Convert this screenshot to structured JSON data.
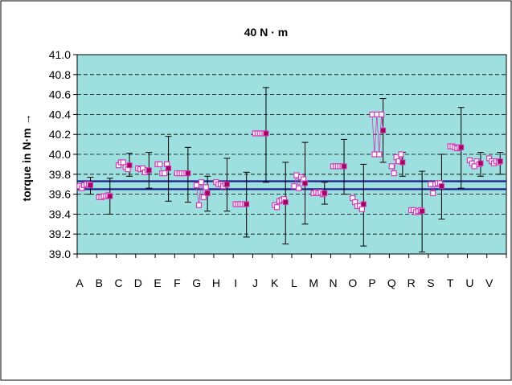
{
  "chart_data": {
    "type": "scatter",
    "title": "40 N · m",
    "xlabel": "",
    "ylabel": "torque in N·m →",
    "categories": [
      "A",
      "B",
      "C",
      "D",
      "E",
      "F",
      "G",
      "H",
      "I",
      "J",
      "K",
      "L",
      "M",
      "N",
      "O",
      "P",
      "Q",
      "R",
      "S",
      "T",
      "U",
      "V"
    ],
    "ylim": [
      39.0,
      41.0
    ],
    "yticks": [
      "39.0",
      "39.2",
      "39.4",
      "39.6",
      "39.8",
      "40.0",
      "40.2",
      "40.4",
      "40.6",
      "40.8",
      "41.0"
    ],
    "grid": true,
    "legend": "none",
    "reference_lines": [
      39.73,
      39.65
    ],
    "measurements": [
      [
        39.68,
        39.66,
        39.69,
        39.7,
        39.7
      ],
      [
        39.57,
        39.57,
        39.58,
        39.58,
        39.59
      ],
      [
        39.89,
        39.92,
        39.92,
        39.87,
        39.85
      ],
      [
        39.86,
        39.85,
        39.86,
        39.82,
        39.84
      ],
      [
        39.9,
        39.9,
        39.81,
        39.81,
        39.9
      ],
      [
        39.81,
        39.81,
        39.81,
        39.81,
        39.81
      ],
      [
        39.69,
        39.49,
        39.72,
        39.57,
        39.67
      ],
      [
        39.72,
        39.7,
        39.7,
        39.68,
        39.7
      ],
      [
        39.5,
        39.5,
        39.5,
        39.5,
        39.5
      ],
      [
        40.21,
        40.21,
        40.21,
        40.21,
        40.21
      ],
      [
        39.49,
        39.47,
        39.53,
        39.54,
        39.55
      ],
      [
        39.68,
        39.79,
        39.66,
        39.77,
        39.75
      ],
      [
        39.61,
        39.62,
        39.61,
        39.62,
        39.6
      ],
      [
        39.88,
        39.88,
        39.88,
        39.88,
        39.88
      ],
      [
        39.56,
        39.52,
        39.48,
        39.48,
        39.45
      ],
      [
        40.4,
        40.0,
        40.4,
        40.0,
        40.4
      ],
      [
        39.88,
        39.81,
        39.97,
        39.93,
        40.0
      ],
      [
        39.44,
        39.44,
        39.42,
        39.43,
        39.44
      ],
      [
        39.7,
        39.61,
        39.7,
        39.71,
        39.71
      ],
      [
        40.08,
        40.08,
        40.07,
        40.06,
        40.07
      ],
      [
        39.94,
        39.91,
        39.88,
        39.93,
        39.9
      ],
      [
        39.96,
        39.93,
        39.91,
        39.93,
        39.92
      ]
    ],
    "means": [
      39.69,
      39.58,
      39.89,
      39.84,
      39.86,
      39.81,
      39.61,
      39.7,
      39.5,
      40.21,
      39.52,
      39.71,
      39.61,
      39.88,
      39.5,
      40.24,
      39.92,
      39.43,
      39.68,
      40.07,
      39.91,
      39.93
    ],
    "error_low": [
      39.6,
      39.4,
      39.78,
      39.66,
      39.53,
      39.52,
      39.43,
      39.43,
      39.17,
      39.72,
      39.1,
      39.3,
      39.5,
      39.6,
      39.08,
      39.92,
      39.78,
      39.02,
      39.35,
      39.66,
      39.78,
      39.8
    ],
    "error_high": [
      39.77,
      39.76,
      40.01,
      40.02,
      40.18,
      40.07,
      39.78,
      39.96,
      39.82,
      40.67,
      39.92,
      40.12,
      39.72,
      40.15,
      39.9,
      40.56,
      40.02,
      39.83,
      40.0,
      40.47,
      40.02,
      40.02
    ],
    "colors": {
      "plot_background": "#9ee0e0",
      "chart_background": "#ffffff",
      "measurement_marker": "#d23ab8",
      "mean_marker": "#a0005a",
      "error_bar": "#000000",
      "reference_line": "#1f1f8a",
      "grid": "#000000"
    }
  }
}
